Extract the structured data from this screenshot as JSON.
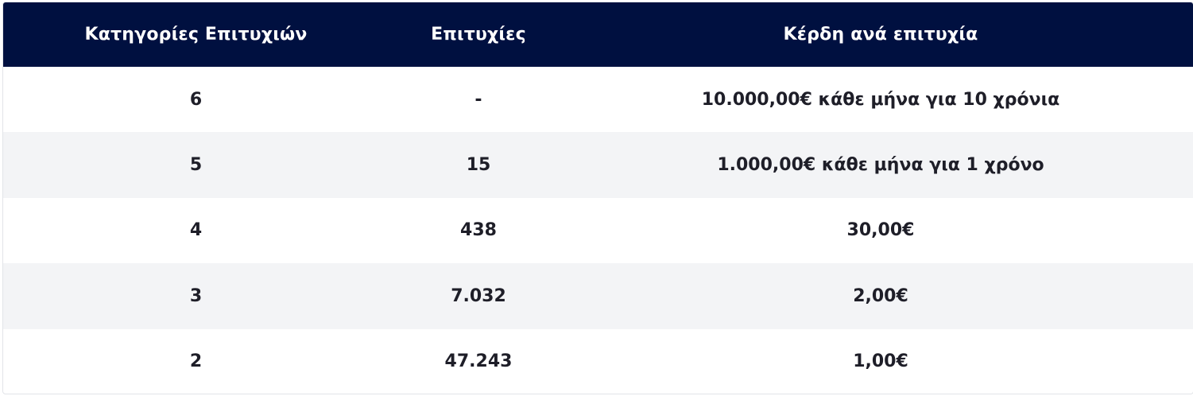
{
  "table": {
    "headers": [
      "Κατηγορίες Επιτυχιών",
      "Επιτυχίες",
      "Κέρδη ανά επιτυχία"
    ],
    "rows": [
      [
        "6",
        "-",
        "10.000,00€ κάθε μήνα για 10 χρόνια"
      ],
      [
        "5",
        "15",
        "1.000,00€ κάθε μήνα για 1 χρόνο"
      ],
      [
        "4",
        "438",
        "30,00€"
      ],
      [
        "3",
        "7.032",
        "2,00€"
      ],
      [
        "2",
        "47.243",
        "1,00€"
      ]
    ]
  },
  "colors": {
    "header_bg": "#001040",
    "header_text": "#ffffff",
    "row_alt_bg": "#f3f4f6",
    "row_text": "#1e1e28"
  }
}
